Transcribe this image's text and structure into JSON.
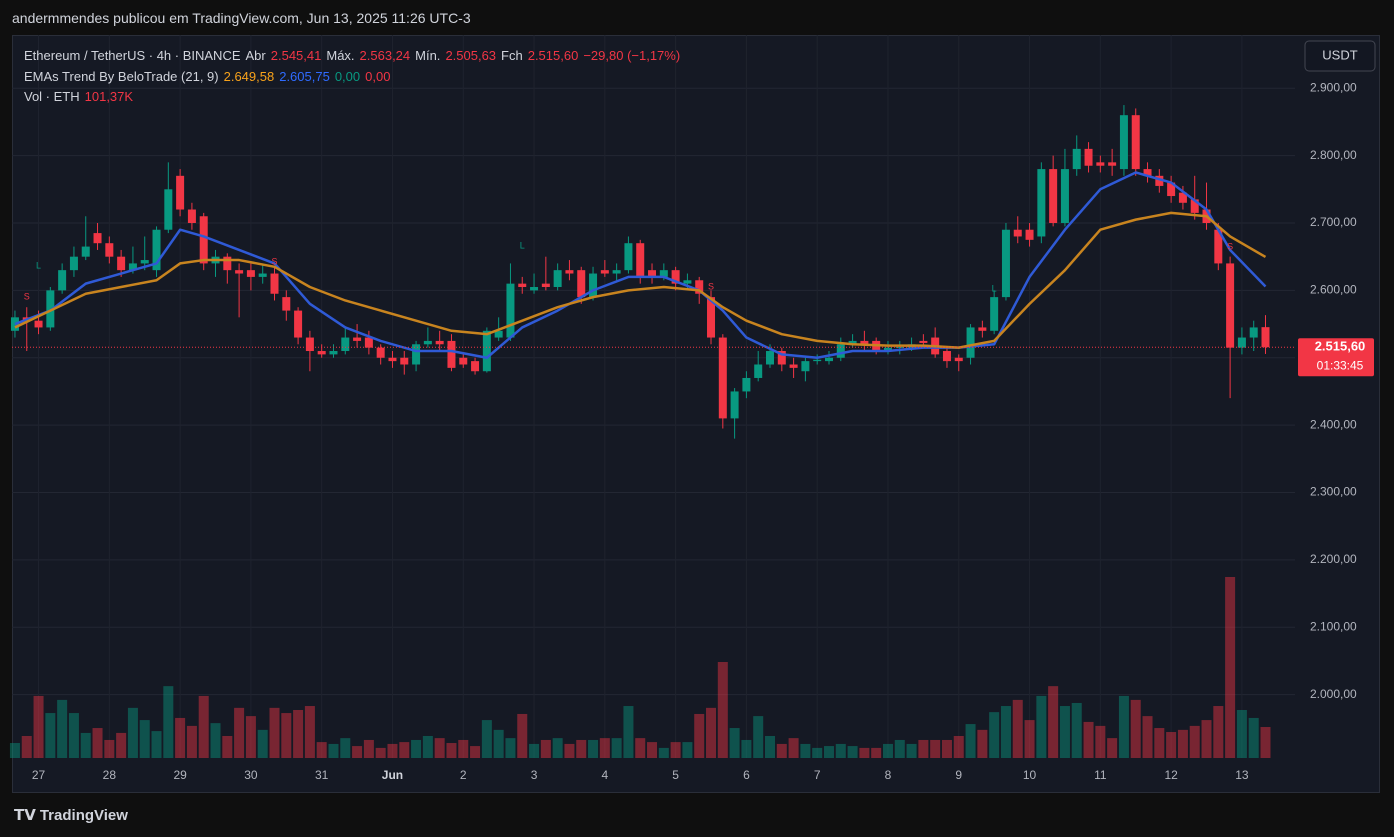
{
  "header": "andermmendes publicou em TradingView.com, Jun 13, 2025 11:26 UTC-3",
  "currency": "USDT",
  "footer": "TradingView",
  "chart_data": {
    "type": "candlestick",
    "up_color": "#089981",
    "down_color": "#f23645",
    "x": [
      0,
      1,
      2,
      3,
      4,
      5,
      6,
      7,
      8,
      9,
      10,
      11,
      12,
      13,
      14,
      15,
      16,
      17,
      18,
      19,
      20,
      21,
      22,
      23,
      24,
      25,
      26,
      27,
      28,
      29,
      30,
      31,
      32,
      33,
      34,
      35,
      36,
      37,
      38,
      39,
      40,
      41,
      42,
      43,
      44,
      45,
      46,
      47,
      48,
      49,
      50,
      51,
      52,
      53,
      54,
      55,
      56,
      57,
      58,
      59,
      60,
      61,
      62,
      63,
      64,
      65,
      66,
      67,
      68,
      69,
      70,
      71,
      72,
      73,
      74,
      75,
      76,
      77,
      78,
      79,
      80,
      81,
      82,
      83,
      84,
      85,
      86,
      87,
      88,
      89,
      90,
      91,
      92,
      93,
      94,
      95,
      96,
      97,
      98,
      99,
      100,
      101,
      102,
      103,
      104,
      105,
      106
    ],
    "open": [
      2540,
      2560,
      2555,
      2545,
      2600,
      2630,
      2650,
      2685,
      2670,
      2650,
      2630,
      2640,
      2630,
      2690,
      2770,
      2720,
      2710,
      2640,
      2650,
      2630,
      2630,
      2620,
      2625,
      2590,
      2570,
      2530,
      2510,
      2505,
      2510,
      2530,
      2530,
      2515,
      2500,
      2500,
      2490,
      2520,
      2525,
      2525,
      2500,
      2495,
      2480,
      2530,
      2530,
      2610,
      2600,
      2610,
      2605,
      2630,
      2630,
      2590,
      2630,
      2625,
      2630,
      2670,
      2630,
      2620,
      2630,
      2610,
      2615,
      2590,
      2530,
      2410,
      2450,
      2470,
      2490,
      2510,
      2490,
      2480,
      2495,
      2495,
      2500,
      2520,
      2525,
      2525,
      2510,
      2515,
      2515,
      2525,
      2530,
      2510,
      2500,
      2500,
      2545,
      2540,
      2590,
      2690,
      2690,
      2680,
      2780,
      2700,
      2780,
      2810,
      2790,
      2790,
      2780,
      2860,
      2780,
      2770,
      2760,
      2745,
      2735,
      2720,
      2690,
      2640,
      2515,
      2530,
      2545.41
    ],
    "high": [
      2570,
      2575,
      2570,
      2605,
      2640,
      2665,
      2710,
      2700,
      2680,
      2660,
      2665,
      2680,
      2695,
      2790,
      2780,
      2730,
      2715,
      2660,
      2655,
      2640,
      2640,
      2640,
      2635,
      2600,
      2575,
      2540,
      2520,
      2520,
      2545,
      2550,
      2540,
      2520,
      2510,
      2510,
      2525,
      2545,
      2540,
      2535,
      2505,
      2500,
      2545,
      2560,
      2640,
      2620,
      2625,
      2650,
      2640,
      2645,
      2635,
      2635,
      2645,
      2640,
      2680,
      2675,
      2640,
      2640,
      2635,
      2625,
      2620,
      2600,
      2535,
      2455,
      2480,
      2510,
      2520,
      2515,
      2500,
      2500,
      2505,
      2510,
      2530,
      2535,
      2540,
      2530,
      2525,
      2525,
      2530,
      2535,
      2545,
      2515,
      2505,
      2550,
      2555,
      2600,
      2700,
      2710,
      2700,
      2790,
      2800,
      2810,
      2830,
      2820,
      2800,
      2810,
      2875,
      2870,
      2790,
      2780,
      2770,
      2755,
      2770,
      2760,
      2700,
      2650,
      2545,
      2555,
      2563.24
    ],
    "low": [
      2530,
      2510,
      2535,
      2540,
      2595,
      2620,
      2645,
      2660,
      2640,
      2620,
      2625,
      2630,
      2620,
      2685,
      2710,
      2690,
      2630,
      2620,
      2610,
      2560,
      2600,
      2610,
      2585,
      2555,
      2520,
      2480,
      2500,
      2500,
      2505,
      2515,
      2505,
      2490,
      2485,
      2475,
      2480,
      2515,
      2510,
      2480,
      2485,
      2475,
      2478,
      2525,
      2525,
      2595,
      2595,
      2600,
      2600,
      2615,
      2580,
      2585,
      2620,
      2615,
      2625,
      2610,
      2610,
      2615,
      2600,
      2600,
      2580,
      2520,
      2395,
      2380,
      2440,
      2465,
      2485,
      2480,
      2470,
      2465,
      2490,
      2490,
      2495,
      2515,
      2510,
      2505,
      2505,
      2505,
      2510,
      2515,
      2500,
      2485,
      2480,
      2490,
      2530,
      2535,
      2585,
      2670,
      2665,
      2670,
      2695,
      2695,
      2770,
      2775,
      2775,
      2770,
      2770,
      2770,
      2760,
      2745,
      2730,
      2720,
      2705,
      2690,
      2630,
      2440,
      2505,
      2510,
      2505.63
    ],
    "close": [
      2560,
      2555,
      2545,
      2600,
      2630,
      2650,
      2665,
      2670,
      2650,
      2630,
      2640,
      2645,
      2690,
      2750,
      2720,
      2700,
      2640,
      2650,
      2630,
      2625,
      2620,
      2625,
      2595,
      2570,
      2530,
      2510,
      2505,
      2510,
      2530,
      2525,
      2515,
      2500,
      2495,
      2490,
      2520,
      2525,
      2520,
      2485,
      2490,
      2480,
      2540,
      2540,
      2610,
      2605,
      2605,
      2605,
      2630,
      2625,
      2590,
      2625,
      2625,
      2630,
      2670,
      2620,
      2620,
      2630,
      2610,
      2615,
      2595,
      2530,
      2410,
      2450,
      2470,
      2490,
      2510,
      2490,
      2485,
      2495,
      2497,
      2500,
      2520,
      2525,
      2520,
      2510,
      2515,
      2516,
      2520,
      2522,
      2505,
      2495,
      2495,
      2545,
      2540,
      2590,
      2690,
      2680,
      2675,
      2780,
      2700,
      2780,
      2810,
      2785,
      2785,
      2785,
      2860,
      2780,
      2770,
      2755,
      2740,
      2730,
      2715,
      2700,
      2640,
      2515,
      2530,
      2545,
      2515.6
    ],
    "volume": [
      49,
      72,
      203,
      147,
      190,
      147,
      82,
      98,
      59,
      82,
      164,
      124,
      88,
      235,
      131,
      105,
      203,
      114,
      72,
      164,
      137,
      92,
      164,
      147,
      157,
      170,
      52,
      46,
      65,
      39,
      59,
      33,
      46,
      52,
      59,
      72,
      65,
      49,
      59,
      39,
      124,
      92,
      65,
      144,
      46,
      59,
      65,
      46,
      59,
      59,
      65,
      65,
      170,
      65,
      52,
      33,
      52,
      52,
      144,
      164,
      314,
      98,
      59,
      137,
      72,
      46,
      65,
      46,
      33,
      39,
      46,
      39,
      33,
      33,
      46,
      59,
      46,
      59,
      59,
      59,
      72,
      111,
      92,
      150,
      170,
      190,
      124,
      203,
      235,
      170,
      180,
      118,
      105,
      65,
      203,
      190,
      137,
      98,
      85,
      92,
      105,
      124,
      170,
      592,
      157,
      131,
      101.37
    ],
    "lines": [
      {
        "color": "#2f5ad6",
        "x": [
          0,
          3,
          6,
          9,
          12,
          14,
          16,
          19,
          22,
          25,
          28,
          31,
          34,
          37,
          40,
          43,
          46,
          49,
          52,
          55,
          58,
          60,
          62,
          65,
          68,
          71,
          74,
          77,
          80,
          83,
          86,
          89,
          92,
          95,
          98,
          101,
          103,
          106
        ],
        "values": [
          2550,
          2570,
          2610,
          2625,
          2640,
          2690,
          2680,
          2660,
          2640,
          2580,
          2545,
          2525,
          2510,
          2510,
          2500,
          2545,
          2570,
          2600,
          2620,
          2620,
          2600,
          2570,
          2530,
          2505,
          2500,
          2510,
          2510,
          2515,
          2515,
          2520,
          2620,
          2690,
          2750,
          2775,
          2760,
          2720,
          2660,
          2605.75
        ]
      },
      {
        "color": "#c8841f",
        "x": [
          0,
          3,
          6,
          9,
          12,
          14,
          16,
          19,
          22,
          25,
          28,
          31,
          34,
          37,
          40,
          43,
          46,
          49,
          52,
          55,
          58,
          60,
          62,
          65,
          68,
          71,
          74,
          77,
          80,
          83,
          86,
          89,
          92,
          95,
          98,
          101,
          103,
          106
        ],
        "values": [
          2545,
          2570,
          2595,
          2605,
          2615,
          2640,
          2645,
          2645,
          2635,
          2605,
          2585,
          2570,
          2555,
          2540,
          2535,
          2555,
          2575,
          2590,
          2600,
          2605,
          2600,
          2575,
          2555,
          2535,
          2525,
          2520,
          2518,
          2518,
          2515,
          2525,
          2580,
          2630,
          2690,
          2705,
          2715,
          2710,
          2680,
          2649.58
        ]
      }
    ],
    "annotations": [
      {
        "text": "S",
        "x": 1,
        "y": 2590,
        "color": "#f23645"
      },
      {
        "text": "L",
        "x": 2,
        "y": 2636,
        "color": "#089981"
      },
      {
        "text": "S",
        "x": 22,
        "y": 2642,
        "color": "#f23645"
      },
      {
        "text": "L",
        "x": 43,
        "y": 2666,
        "color": "#089981"
      },
      {
        "text": "S",
        "x": 59,
        "y": 2605,
        "color": "#f23645"
      },
      {
        "text": "L",
        "x": 83,
        "y": 2602,
        "color": "#089981"
      },
      {
        "text": "S",
        "x": 103,
        "y": 2664,
        "color": "#f23645"
      }
    ],
    "last_price": {
      "label": "2.515,60",
      "countdown": "01:33:45"
    },
    "xlim": [
      -0.25,
      108.5
    ],
    "xticks": [
      {
        "value": 2,
        "label": "27"
      },
      {
        "value": 8,
        "label": "28"
      },
      {
        "value": 14,
        "label": "29"
      },
      {
        "value": 20,
        "label": "30"
      },
      {
        "value": 26,
        "label": "31"
      },
      {
        "value": 32,
        "label": "Jun"
      },
      {
        "value": 38,
        "label": "2"
      },
      {
        "value": 44,
        "label": "3"
      },
      {
        "value": 50,
        "label": "4"
      },
      {
        "value": 56,
        "label": "5"
      },
      {
        "value": 62,
        "label": "6"
      },
      {
        "value": 68,
        "label": "7"
      },
      {
        "value": 74,
        "label": "8"
      },
      {
        "value": 80,
        "label": "9"
      },
      {
        "value": 86,
        "label": "10"
      },
      {
        "value": 92,
        "label": "11"
      },
      {
        "value": 98,
        "label": "12"
      },
      {
        "value": 104,
        "label": "13"
      }
    ],
    "ylim": [
      1906,
      2979
    ],
    "yticks": [
      {
        "value": 2000,
        "label": "2.000,00"
      },
      {
        "value": 2100,
        "label": "2.100,00"
      },
      {
        "value": 2200,
        "label": "2.200,00"
      },
      {
        "value": 2300,
        "label": "2.300,00"
      },
      {
        "value": 2400,
        "label": "2.400,00"
      },
      {
        "value": 2500,
        "label": "2.500,00"
      },
      {
        "value": 2600,
        "label": "2.600,00"
      },
      {
        "value": 2700,
        "label": "2.700,00"
      },
      {
        "value": 2800,
        "label": "2.800,00"
      },
      {
        "value": 2900,
        "label": "2.900,00"
      }
    ],
    "legend": [
      [
        {
          "text": "Ethereum / TetherUS · 4h · BINANCE",
          "color": "#d1d4dc"
        },
        {
          "text": "Abr",
          "color": "#d1d4dc"
        },
        {
          "text": "2.545,41",
          "color": "#f23645"
        },
        {
          "text": "Máx.",
          "color": "#d1d4dc"
        },
        {
          "text": "2.563,24",
          "color": "#f23645"
        },
        {
          "text": "Mín.",
          "color": "#d1d4dc"
        },
        {
          "text": "2.505,63",
          "color": "#f23645"
        },
        {
          "text": "Fch",
          "color": "#d1d4dc"
        },
        {
          "text": "2.515,60",
          "color": "#f23645"
        },
        {
          "text": "−29,80 (−1,17%)",
          "color": "#f23645"
        }
      ],
      [
        {
          "text": "EMAs Trend By BeloTrade (21, 9)",
          "color": "#d1d4dc"
        },
        {
          "text": "2.649,58",
          "color": "#f7a21b"
        },
        {
          "text": "2.605,75",
          "color": "#2f6bff"
        },
        {
          "text": "0,00",
          "color": "#089981"
        },
        {
          "text": "0,00",
          "color": "#f23645"
        }
      ],
      [
        {
          "text": "Vol · ETH",
          "color": "#d1d4dc"
        },
        {
          "text": "101,37K",
          "color": "#f23645"
        }
      ]
    ]
  }
}
